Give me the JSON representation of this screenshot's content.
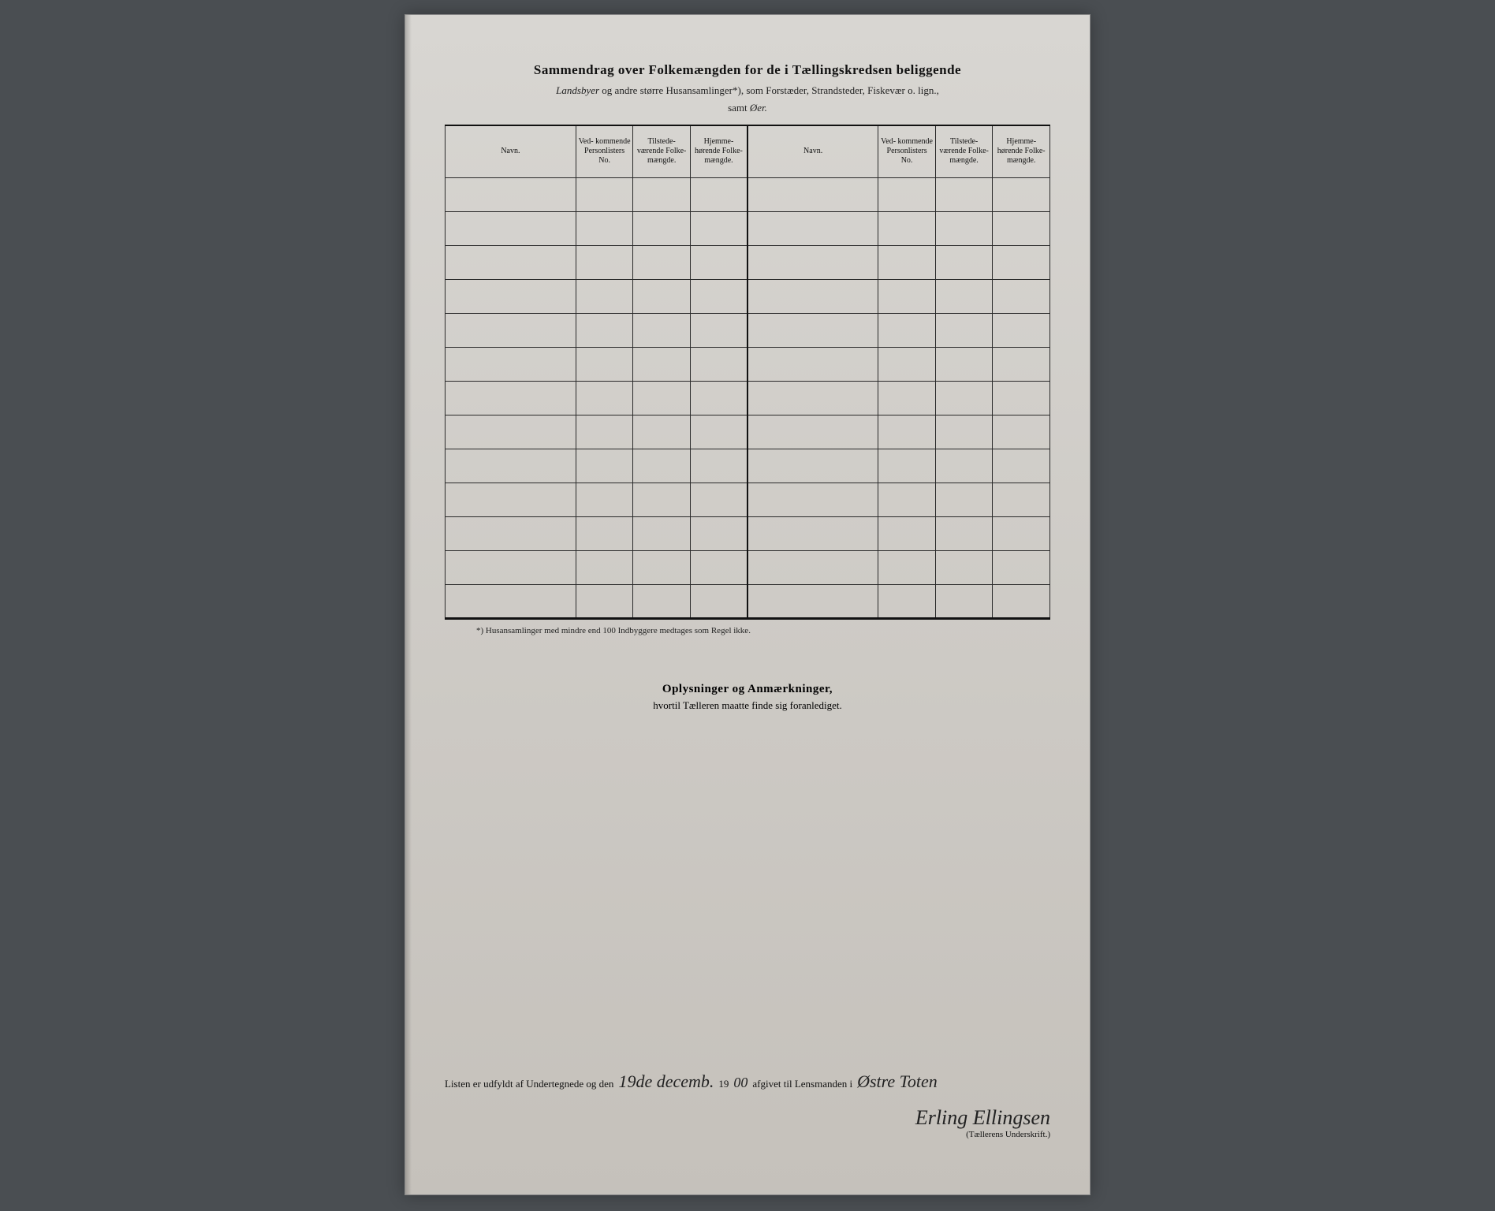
{
  "title": "Sammendrag over Folkemængden for de i Tællingskredsen beliggende",
  "subtitle_prefix_italic": "Landsbyer",
  "subtitle_middle": " og andre større Husansamlinger*), som Forstæder, Strandsteder, Fiskevær o. lign.,",
  "subtitle_samt": "samt ",
  "subtitle_oer_italic": "Øer.",
  "table": {
    "columns": {
      "navn": "Navn.",
      "vedkommende": "Ved-\nkommende\nPersonlisters\nNo.",
      "tilstede": "Tilstede-\nværende\nFolke-\nmængde.",
      "hjemme": "Hjemme-\nhørende\nFolke-\nmængde."
    },
    "row_count": 13
  },
  "footnote": "*)   Husansamlinger med mindre end 100 Indbyggere medtages som Regel ikke.",
  "remarks": {
    "title": "Oplysninger og Anmærkninger,",
    "sub": "hvortil Tælleren maatte finde sig foranlediget."
  },
  "signature": {
    "prefix": "Listen er udfyldt af Undertegnede og den",
    "date_hand": "19de decemb.",
    "year_print": "19",
    "year_hand": "00",
    "middle": "afgivet til Lensmanden i",
    "place_hand": "Østre Toten",
    "name_hand": "Erling Ellingsen",
    "label": "(Tællerens Underskrift.)"
  },
  "colors": {
    "page_bg": "#d0cdc8",
    "outer_bg": "#4a4e52",
    "ink": "#111111",
    "border": "#2a2a2a"
  }
}
